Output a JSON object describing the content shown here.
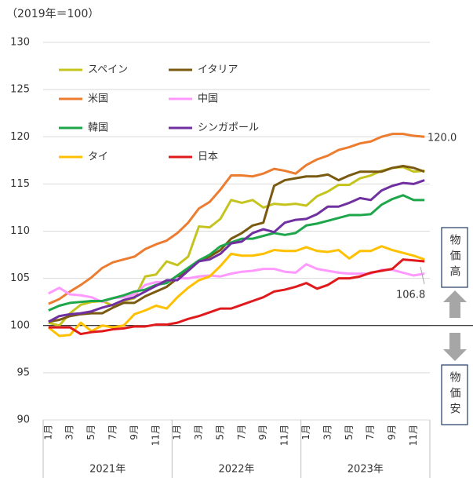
{
  "chart_data": {
    "type": "line",
    "unit_label": "（2019年＝100）",
    "categories": [
      "1月",
      null,
      "3月",
      null,
      "5月",
      null,
      "7月",
      null,
      "9月",
      null,
      "11月",
      null,
      "1月",
      null,
      "3月",
      null,
      "5月",
      null,
      "7月",
      null,
      "9月",
      null,
      "11月",
      null,
      "1月",
      null,
      "3月",
      null,
      "5月",
      null,
      "7月",
      null,
      "9月",
      null,
      "11月",
      null
    ],
    "years": [
      "2021年",
      "2022年",
      "2023年"
    ],
    "ylim": [
      90,
      130
    ],
    "yticks": [
      90,
      95,
      100,
      105,
      110,
      115,
      120,
      125,
      130
    ],
    "grid": true,
    "reference_y": 100,
    "series": [
      {
        "name": "スペイン",
        "color": "#c5c41f",
        "values": [
          100.3,
          100.0,
          101.3,
          102.2,
          102.5,
          102.6,
          102.1,
          102.6,
          102.9,
          105.2,
          105.4,
          106.8,
          106.4,
          107.3,
          110.5,
          110.4,
          111.3,
          113.3,
          113.0,
          113.3,
          112.5,
          112.9,
          112.8,
          112.9,
          112.7,
          113.7,
          114.2,
          114.9,
          114.9,
          115.6,
          115.9,
          116.4,
          116.7,
          116.8,
          116.3,
          116.4
        ]
      },
      {
        "name": "イタリア",
        "color": "#7a5a10",
        "values": [
          100.4,
          100.6,
          101.0,
          101.2,
          101.3,
          101.3,
          101.9,
          102.4,
          102.4,
          103.1,
          103.6,
          104.1,
          105.0,
          105.9,
          106.8,
          107.3,
          108.0,
          109.2,
          109.8,
          110.6,
          110.9,
          114.8,
          115.4,
          115.6,
          115.8,
          115.8,
          116.0,
          115.4,
          115.9,
          116.3,
          116.3,
          116.3,
          116.7,
          116.9,
          116.7,
          116.3
        ]
      },
      {
        "name": "米国",
        "color": "#ec7c30",
        "values": [
          102.3,
          102.8,
          103.6,
          104.3,
          105.1,
          106.1,
          106.7,
          107.0,
          107.3,
          108.1,
          108.6,
          109.0,
          109.8,
          110.9,
          112.4,
          113.1,
          114.4,
          115.9,
          115.9,
          115.8,
          116.1,
          116.6,
          116.4,
          116.1,
          117.0,
          117.6,
          118.0,
          118.6,
          118.9,
          119.3,
          119.5,
          120.0,
          120.3,
          120.3,
          120.1,
          120.0
        ]
      },
      {
        "name": "中国",
        "color": "#ff99ff",
        "values": [
          103.4,
          104.0,
          103.3,
          103.2,
          103.0,
          102.5,
          102.9,
          103.0,
          103.3,
          104.3,
          104.6,
          104.6,
          105.0,
          105.0,
          105.2,
          105.3,
          105.2,
          105.5,
          105.7,
          105.8,
          106.0,
          106.0,
          105.7,
          105.6,
          106.5,
          106.0,
          105.8,
          105.6,
          105.5,
          105.5,
          105.5,
          105.9,
          105.9,
          105.6,
          105.3,
          105.5
        ]
      },
      {
        "name": "韓国",
        "color": "#1ea64b",
        "values": [
          101.6,
          102.1,
          102.4,
          102.5,
          102.6,
          102.6,
          102.9,
          103.2,
          103.6,
          103.8,
          104.3,
          104.5,
          105.3,
          106.1,
          106.9,
          107.5,
          108.4,
          108.8,
          109.2,
          109.2,
          109.5,
          109.8,
          109.6,
          109.8,
          110.6,
          110.8,
          111.1,
          111.4,
          111.7,
          111.7,
          111.8,
          112.8,
          113.4,
          113.8,
          113.3,
          113.3
        ]
      },
      {
        "name": "シンガポール",
        "color": "#7030a0",
        "values": [
          100.4,
          101.0,
          101.2,
          101.3,
          101.5,
          101.9,
          102.2,
          102.7,
          103.0,
          103.6,
          104.2,
          104.8,
          104.8,
          105.8,
          106.8,
          107.0,
          107.6,
          108.7,
          108.9,
          109.8,
          110.2,
          109.9,
          110.9,
          111.2,
          111.3,
          111.8,
          112.6,
          112.6,
          113.0,
          113.5,
          113.3,
          114.3,
          114.8,
          115.1,
          115.0,
          115.4
        ]
      },
      {
        "name": "タイ",
        "color": "#ffc000",
        "values": [
          99.8,
          98.9,
          99.0,
          100.3,
          99.4,
          100.0,
          99.8,
          100.0,
          101.2,
          101.6,
          102.1,
          101.8,
          103.0,
          104.0,
          104.8,
          105.2,
          106.3,
          107.6,
          107.4,
          107.4,
          107.6,
          108.0,
          107.9,
          107.9,
          108.3,
          107.9,
          107.8,
          108.0,
          107.1,
          107.9,
          107.9,
          108.4,
          108.0,
          107.7,
          107.4,
          107.0
        ]
      },
      {
        "name": "日本",
        "color": "#e0191c",
        "values": [
          99.8,
          99.8,
          99.8,
          99.1,
          99.3,
          99.4,
          99.6,
          99.7,
          99.9,
          99.9,
          100.1,
          100.1,
          100.3,
          100.7,
          101.0,
          101.4,
          101.8,
          101.8,
          102.2,
          102.6,
          103.0,
          103.6,
          103.8,
          104.1,
          104.5,
          103.9,
          104.3,
          105.0,
          105.0,
          105.2,
          105.6,
          105.8,
          106.0,
          107.0,
          106.9,
          106.8
        ]
      }
    ],
    "annotations": [
      "120.0",
      "106.8"
    ],
    "side_labels": [
      "物価高",
      "物価安"
    ]
  }
}
